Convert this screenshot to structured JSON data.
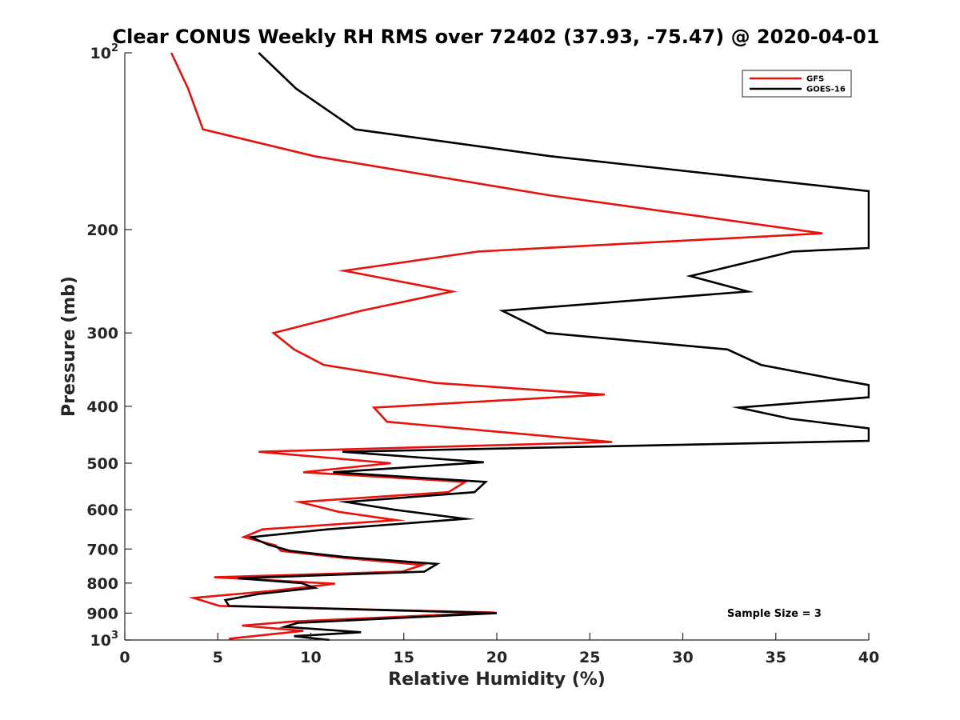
{
  "chart_data": {
    "type": "line",
    "title": "Clear CONUS Weekly RH RMS over 72402 (37.93, -75.47) @ 2020-04-01",
    "xlabel": "Relative Humidity (%)",
    "ylabel": "Pressure (mb)",
    "xlim": [
      0,
      40
    ],
    "ylim": [
      100,
      1000
    ],
    "y_scale": "log",
    "y_reversed": true,
    "xticks": [
      0,
      5,
      10,
      15,
      20,
      25,
      30,
      35,
      40
    ],
    "yticks": [
      {
        "value": 100,
        "label": "10",
        "exp": "2"
      },
      {
        "value": 200,
        "label": "200"
      },
      {
        "value": 300,
        "label": "300"
      },
      {
        "value": 400,
        "label": "400"
      },
      {
        "value": 500,
        "label": "500"
      },
      {
        "value": 600,
        "label": "600"
      },
      {
        "value": 700,
        "label": "700"
      },
      {
        "value": 800,
        "label": "800"
      },
      {
        "value": 900,
        "label": "900"
      },
      {
        "value": 1000,
        "label": "10",
        "exp": "3"
      }
    ],
    "grid": false,
    "legend": "top-right",
    "annotation": "Sample Size = 3",
    "series": [
      {
        "name": "GFS",
        "color": "#e8120c",
        "points": [
          [
            2.5,
            100
          ],
          [
            3.4,
            115
          ],
          [
            4.2,
            135
          ],
          [
            10.2,
            150
          ],
          [
            22.9,
            175
          ],
          [
            37.5,
            203
          ],
          [
            19.0,
            218
          ],
          [
            11.8,
            235
          ],
          [
            17.6,
            255
          ],
          [
            12.7,
            275
          ],
          [
            8.0,
            300
          ],
          [
            9.1,
            320
          ],
          [
            10.7,
            340
          ],
          [
            16.7,
            365
          ],
          [
            25.8,
            382
          ],
          [
            13.4,
            402
          ],
          [
            14.1,
            425
          ],
          [
            26.2,
            460
          ],
          [
            7.2,
            478
          ],
          [
            14.3,
            500
          ],
          [
            9.6,
            518
          ],
          [
            18.3,
            538
          ],
          [
            17.4,
            560
          ],
          [
            9.4,
            582
          ],
          [
            11.5,
            605
          ],
          [
            14.6,
            625
          ],
          [
            7.4,
            648
          ],
          [
            6.4,
            668
          ],
          [
            8.1,
            690
          ],
          [
            8.4,
            705
          ],
          [
            11.8,
            725
          ],
          [
            16.0,
            745
          ],
          [
            14.9,
            765
          ],
          [
            4.8,
            782
          ],
          [
            11.3,
            802
          ],
          [
            7.9,
            825
          ],
          [
            3.7,
            848
          ],
          [
            5.1,
            875
          ],
          [
            19.9,
            898
          ],
          [
            9.0,
            930
          ],
          [
            6.3,
            945
          ],
          [
            9.6,
            965
          ],
          [
            5.6,
            995
          ]
        ]
      },
      {
        "name": "GOES-16",
        "color": "#000000",
        "points": [
          [
            7.2,
            100
          ],
          [
            9.2,
            115
          ],
          [
            12.4,
            135
          ],
          [
            22.9,
            150
          ],
          [
            40.0,
            172
          ],
          [
            40.0,
            215
          ],
          [
            35.9,
            218
          ],
          [
            30.4,
            240
          ],
          [
            33.5,
            255
          ],
          [
            20.3,
            275
          ],
          [
            22.7,
            300
          ],
          [
            32.4,
            320
          ],
          [
            34.2,
            340
          ],
          [
            38.3,
            360
          ],
          [
            40.0,
            368
          ],
          [
            40.0,
            386
          ],
          [
            33.0,
            402
          ],
          [
            35.8,
            420
          ],
          [
            40.0,
            436
          ],
          [
            40.0,
            458
          ],
          [
            11.7,
            478
          ],
          [
            19.3,
            498
          ],
          [
            11.2,
            518
          ],
          [
            19.4,
            538
          ],
          [
            18.8,
            560
          ],
          [
            11.9,
            582
          ],
          [
            14.5,
            600
          ],
          [
            18.3,
            622
          ],
          [
            10.9,
            648
          ],
          [
            6.8,
            668
          ],
          [
            7.7,
            688
          ],
          [
            8.9,
            705
          ],
          [
            11.8,
            722
          ],
          [
            16.8,
            742
          ],
          [
            16.1,
            765
          ],
          [
            6.1,
            785
          ],
          [
            9.5,
            800
          ],
          [
            10.2,
            815
          ],
          [
            7.2,
            835
          ],
          [
            5.4,
            855
          ],
          [
            5.6,
            875
          ],
          [
            20.0,
            900
          ],
          [
            9.3,
            935
          ],
          [
            8.6,
            950
          ],
          [
            12.7,
            970
          ],
          [
            9.1,
            985
          ],
          [
            11.0,
            1000
          ]
        ]
      }
    ]
  }
}
